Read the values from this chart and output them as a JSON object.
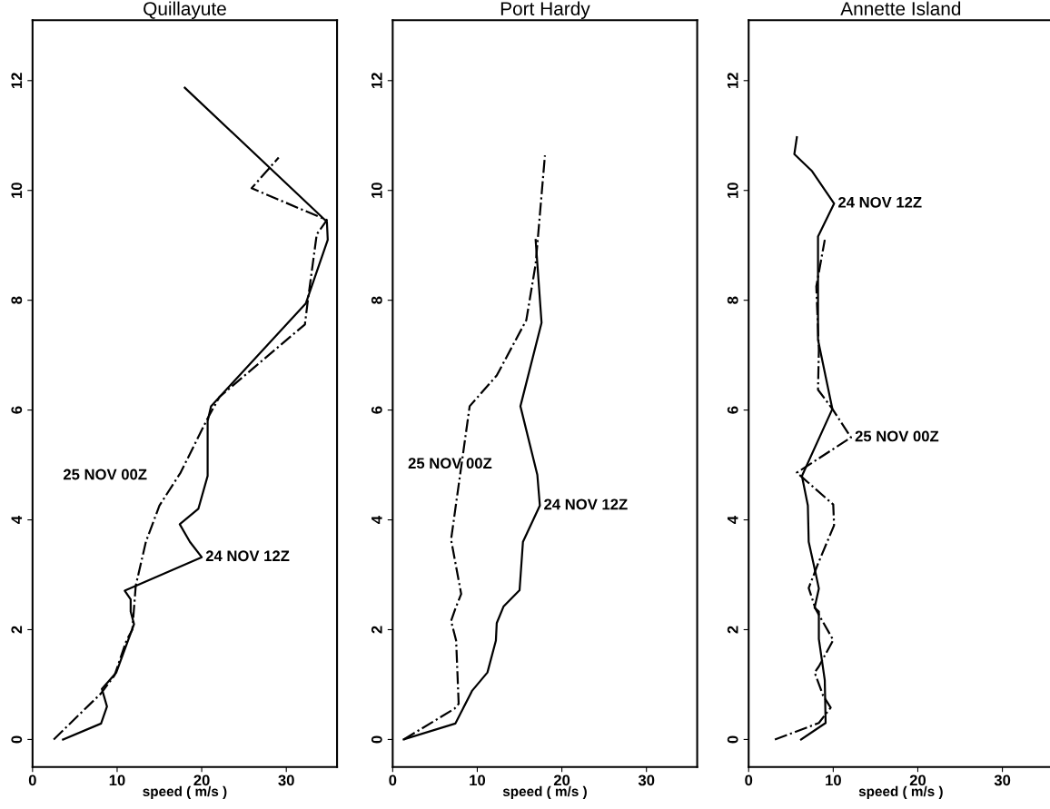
{
  "chart_data": [
    {
      "type": "line",
      "title": "Quillayute",
      "xlabel": "speed ( m/s )",
      "xlim": [
        0,
        36
      ],
      "xticks": [
        0,
        10,
        20,
        30
      ],
      "ylim": [
        -0.5,
        13.1
      ],
      "yticks": [
        0,
        2,
        4,
        6,
        8,
        10,
        12
      ],
      "grid": false,
      "legend": false,
      "series": [
        {
          "color": "#000000",
          "line_style": "solid",
          "x": [
            3.6,
            8.1,
            8.8,
            8.2,
            9.9,
            12.0,
            11.6,
            11.6,
            10.9,
            20.0,
            18.6,
            17.4,
            19.6,
            20.7,
            20.7,
            21.1,
            32.3,
            34.9,
            34.8,
            18.0
          ],
          "values": [
            0,
            0.29,
            0.6,
            0.92,
            1.22,
            2.1,
            2.33,
            2.55,
            2.71,
            3.32,
            3.6,
            3.92,
            4.2,
            4.8,
            5.8,
            6.07,
            7.94,
            9.1,
            9.43,
            11.87
          ]
        },
        {
          "color": "#000000",
          "line_style": "dashdot",
          "x": [
            2.5,
            8.1,
            9.7,
            11.1,
            11.8,
            12.2,
            13.4,
            15.0,
            17.5,
            20.7,
            22.1,
            32.2,
            32.5,
            33.6,
            34.8,
            25.9,
            29.1
          ],
          "values": [
            0,
            0.84,
            1.17,
            1.8,
            2.0,
            2.8,
            3.6,
            4.26,
            4.86,
            5.85,
            6.24,
            7.56,
            7.94,
            9.2,
            9.46,
            10.04,
            10.6
          ]
        }
      ],
      "annotations": [
        "25 NOV 00Z",
        {
          "text": "24 NOV 12Z",
          "x": 20.0,
          "y": 3.32
        }
      ]
    },
    {
      "type": "line",
      "title": "Port Hardy",
      "xlabel": "speed ( m/s )",
      "xlim": [
        0,
        36
      ],
      "xticks": [
        0,
        10,
        20,
        30
      ],
      "ylim": [
        -0.5,
        13.1
      ],
      "yticks": [
        0,
        2,
        4,
        6,
        8,
        10,
        12
      ],
      "grid": false,
      "legend": false,
      "series": [
        {
          "color": "#000000",
          "line_style": "solid",
          "x": [
            1.3,
            7.4,
            9.4,
            11.2,
            12.2,
            12.3,
            13.1,
            15.0,
            15.4,
            17.4,
            17.1,
            15.1,
            17.6,
            16.9
          ],
          "values": [
            0,
            0.29,
            0.89,
            1.22,
            1.8,
            2.12,
            2.42,
            2.72,
            3.6,
            4.26,
            4.82,
            6.07,
            7.59,
            9.1
          ]
        },
        {
          "color": "#000000",
          "line_style": "dashdot",
          "x": [
            1.3,
            7.3,
            7.8,
            7.5,
            6.9,
            7.4,
            8.1,
            6.9,
            9.1,
            12.3,
            15.8,
            16.9,
            18.0
          ],
          "values": [
            0,
            0.56,
            0.65,
            1.8,
            2.16,
            2.38,
            2.65,
            3.64,
            6.07,
            6.63,
            7.64,
            8.66,
            10.64
          ]
        }
      ],
      "annotations": [
        "25 NOV 00Z",
        {
          "text": "24 NOV 12Z",
          "x": 17.4,
          "y": 4.26
        }
      ]
    },
    {
      "type": "line",
      "title": "Annette Island",
      "xlabel": "speed ( m/s )",
      "xlim": [
        0,
        36
      ],
      "xticks": [
        0,
        10,
        20,
        30
      ],
      "ylim": [
        -0.5,
        13.1
      ],
      "yticks": [
        0,
        2,
        4,
        6,
        8,
        10,
        12
      ],
      "grid": false,
      "legend": false,
      "series": [
        {
          "color": "#000000",
          "line_style": "solid",
          "x": [
            6.2,
            9.1,
            9.0,
            8.3,
            8.3,
            7.8,
            8.3,
            7.9,
            7.1,
            7.0,
            6.3,
            9.9,
            8.2,
            8.2,
            10.1,
            7.5,
            5.4,
            5.7
          ],
          "values": [
            0,
            0.3,
            1.08,
            1.83,
            2.33,
            2.4,
            2.75,
            3.04,
            3.6,
            4.26,
            4.8,
            6.02,
            7.28,
            9.16,
            9.76,
            10.35,
            10.66,
            10.97
          ]
        },
        {
          "color": "#000000",
          "line_style": "dashdot",
          "x": [
            3.1,
            8.3,
            9.7,
            8.8,
            7.8,
            8.3,
            10.0,
            7.9,
            7.1,
            8.2,
            10.1,
            10.0,
            5.7,
            12.1,
            9.9,
            8.2,
            8.3,
            8.0,
            9.0
          ],
          "values": [
            0,
            0.3,
            0.58,
            0.8,
            1.22,
            1.33,
            1.81,
            2.38,
            2.76,
            3.2,
            3.9,
            4.28,
            4.86,
            5.5,
            6.02,
            6.37,
            7.09,
            8.25,
            9.1
          ]
        }
      ],
      "annotations": [
        {
          "text": "24 NOV 12Z",
          "x": 10.1,
          "y": 9.76
        },
        {
          "text": "25 NOV 00Z",
          "x": 12.1,
          "y": 5.5
        }
      ]
    }
  ]
}
